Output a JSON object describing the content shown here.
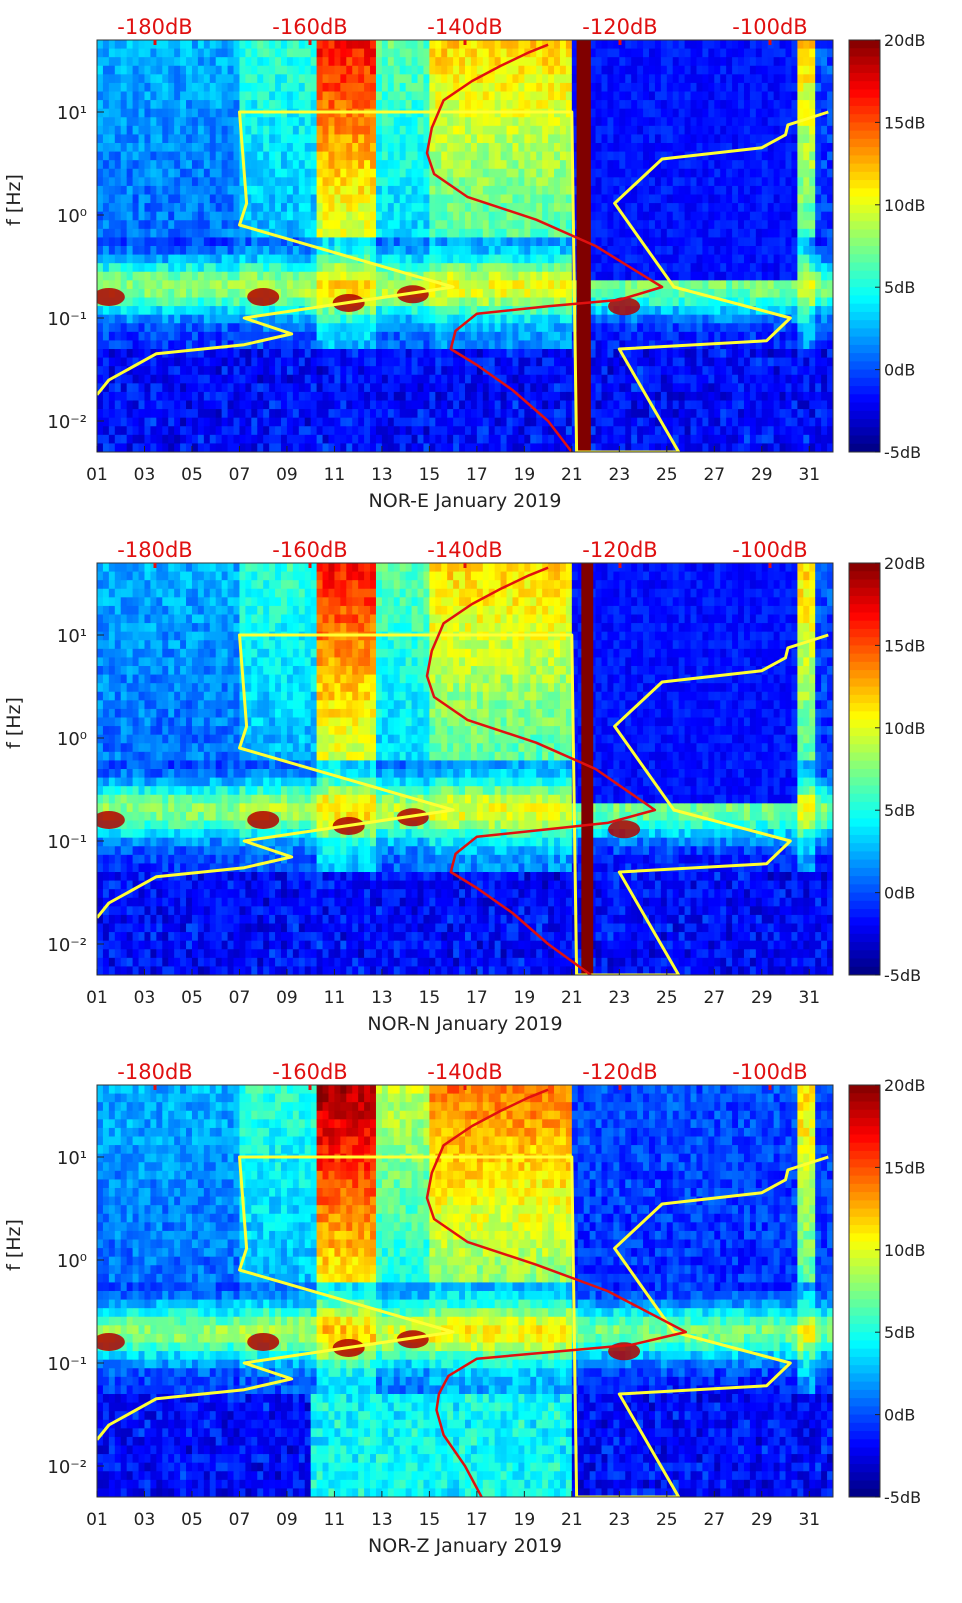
{
  "chart_data": [
    {
      "type": "heatmap",
      "xlabel": "NOR-E January 2019",
      "ylabel": "f [Hz]",
      "x_ticks": [
        "01",
        "03",
        "05",
        "07",
        "09",
        "11",
        "13",
        "15",
        "17",
        "19",
        "21",
        "23",
        "25",
        "27",
        "29",
        "31"
      ],
      "x_range_days": [
        1,
        32
      ],
      "y_scale": "log",
      "y_range_hz": [
        0.005,
        50
      ],
      "y_ticks": [
        "10⁻²",
        "10⁻¹",
        "10⁰",
        "10¹"
      ],
      "top_ticks": [
        "-180dB",
        "-160dB",
        "-140dB",
        "-120dB",
        "-100dB"
      ],
      "colorbar": {
        "ticks": [
          "20dB",
          "15dB",
          "10dB",
          "5dB",
          "0dB",
          "-5dB"
        ],
        "range_db": [
          -5,
          20
        ]
      },
      "gap_band_days": [
        21.2,
        21.8
      ],
      "yellow_curve": {
        "day": [
          1.0,
          1.5,
          3.5,
          7.2,
          9.2,
          7.2,
          16.0,
          7.0,
          7.3,
          7.0,
          21.0,
          21.2,
          25.5,
          23.0,
          29.2,
          30.2,
          25.3,
          22.8,
          24.8,
          29.0,
          30.0,
          30.1,
          31.8
        ],
        "hz": [
          0.018,
          0.025,
          0.045,
          0.055,
          0.07,
          0.1,
          0.2,
          0.8,
          1.3,
          10.0,
          10.0,
          0.005,
          0.005,
          0.05,
          0.06,
          0.1,
          0.2,
          1.3,
          3.5,
          4.5,
          6.0,
          7.5,
          10.0
        ]
      },
      "red_curve": {
        "day": [
          21.0,
          20.0,
          18.5,
          17.0,
          15.9,
          16.1,
          17.0,
          20.0,
          23.0,
          24.8,
          22.0,
          19.5,
          16.6,
          15.2,
          14.9,
          15.1,
          15.6,
          16.8,
          18.0,
          19.2,
          20.0
        ],
        "hz": [
          0.005,
          0.01,
          0.02,
          0.035,
          0.05,
          0.075,
          0.11,
          0.13,
          0.15,
          0.2,
          0.5,
          0.9,
          1.5,
          2.5,
          4.0,
          7.0,
          13.0,
          20.0,
          28.0,
          38.0,
          45.0
        ]
      }
    },
    {
      "type": "heatmap",
      "xlabel": "NOR-N January 2019",
      "ylabel": "f [Hz]",
      "x_ticks": [
        "01",
        "03",
        "05",
        "07",
        "09",
        "11",
        "13",
        "15",
        "17",
        "19",
        "21",
        "23",
        "25",
        "27",
        "29",
        "31"
      ],
      "x_range_days": [
        1,
        32
      ],
      "y_scale": "log",
      "y_range_hz": [
        0.005,
        50
      ],
      "y_ticks": [
        "10⁻²",
        "10⁻¹",
        "10⁰",
        "10¹"
      ],
      "top_ticks": [
        "-180dB",
        "-160dB",
        "-140dB",
        "-120dB",
        "-100dB"
      ],
      "colorbar": {
        "ticks": [
          "20dB",
          "15dB",
          "10dB",
          "5dB",
          "0dB",
          "-5dB"
        ],
        "range_db": [
          -5,
          20
        ]
      },
      "gap_band_days": [
        21.4,
        21.9
      ],
      "yellow_curve": {
        "day": [
          1.0,
          1.5,
          3.5,
          7.2,
          9.2,
          7.2,
          16.0,
          7.0,
          7.3,
          7.0,
          21.0,
          21.2,
          25.5,
          23.0,
          29.2,
          30.2,
          25.3,
          22.8,
          24.8,
          29.0,
          30.0,
          30.1,
          31.8
        ],
        "hz": [
          0.018,
          0.025,
          0.045,
          0.055,
          0.07,
          0.1,
          0.2,
          0.8,
          1.3,
          10.0,
          10.0,
          0.005,
          0.005,
          0.05,
          0.06,
          0.1,
          0.2,
          1.3,
          3.5,
          4.5,
          6.0,
          7.5,
          10.0
        ]
      },
      "red_curve": {
        "day": [
          21.8,
          20.0,
          18.5,
          17.0,
          15.9,
          16.1,
          17.0,
          20.0,
          22.5,
          24.5,
          22.0,
          19.5,
          16.6,
          15.2,
          14.9,
          15.1,
          15.6,
          16.8,
          18.0,
          19.2,
          20.0
        ],
        "hz": [
          0.005,
          0.01,
          0.02,
          0.035,
          0.05,
          0.075,
          0.11,
          0.13,
          0.15,
          0.2,
          0.5,
          0.9,
          1.5,
          2.5,
          4.0,
          7.0,
          13.0,
          20.0,
          28.0,
          38.0,
          45.0
        ]
      }
    },
    {
      "type": "heatmap",
      "xlabel": "NOR-Z January 2019",
      "ylabel": "f [Hz]",
      "x_ticks": [
        "01",
        "03",
        "05",
        "07",
        "09",
        "11",
        "13",
        "15",
        "17",
        "19",
        "21",
        "23",
        "25",
        "27",
        "29",
        "31"
      ],
      "x_range_days": [
        1,
        32
      ],
      "y_scale": "log",
      "y_range_hz": [
        0.005,
        50
      ],
      "y_ticks": [
        "10⁻²",
        "10⁻¹",
        "10⁰",
        "10¹"
      ],
      "top_ticks": [
        "-180dB",
        "-160dB",
        "-140dB",
        "-120dB",
        "-100dB"
      ],
      "colorbar": {
        "ticks": [
          "20dB",
          "15dB",
          "10dB",
          "5dB",
          "0dB",
          "-5dB"
        ],
        "range_db": [
          -5,
          20
        ]
      },
      "gap_band_days": null,
      "yellow_curve": {
        "day": [
          1.0,
          1.5,
          3.5,
          7.2,
          9.2,
          7.2,
          16.0,
          7.0,
          7.3,
          7.0,
          21.0,
          21.2,
          25.5,
          23.0,
          29.2,
          30.2,
          25.3,
          22.8,
          24.8,
          29.0,
          30.0,
          30.1,
          31.8
        ],
        "hz": [
          0.018,
          0.025,
          0.045,
          0.055,
          0.07,
          0.1,
          0.2,
          0.8,
          1.3,
          10.0,
          10.0,
          0.005,
          0.005,
          0.05,
          0.06,
          0.1,
          0.2,
          1.3,
          3.5,
          4.5,
          6.0,
          7.5,
          10.0
        ]
      },
      "red_curve": {
        "day": [
          17.2,
          16.5,
          15.6,
          15.3,
          15.4,
          15.8,
          17.0,
          20.5,
          23.5,
          25.8,
          22.5,
          19.5,
          16.6,
          15.2,
          14.9,
          15.1,
          15.6,
          16.8,
          18.0,
          19.2,
          20.0
        ],
        "hz": [
          0.005,
          0.01,
          0.02,
          0.035,
          0.05,
          0.075,
          0.11,
          0.13,
          0.15,
          0.2,
          0.5,
          0.9,
          1.5,
          2.5,
          4.0,
          7.0,
          13.0,
          20.0,
          28.0,
          38.0,
          45.0
        ]
      }
    }
  ]
}
